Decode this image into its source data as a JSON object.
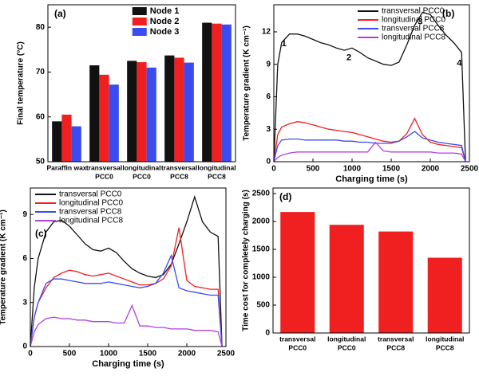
{
  "chart_data": [
    {
      "type": "bar",
      "label": "(a)",
      "y_label": "Final temperature (°C)",
      "categories": [
        [
          "Paraffin wax"
        ],
        [
          "transversal",
          "PCC0"
        ],
        [
          "longitudinal",
          "PCC0"
        ],
        [
          "transversal",
          "PCC8"
        ],
        [
          "longitudinal",
          "PCC8"
        ]
      ],
      "series": [
        {
          "name": "Node 1",
          "color": "#111111",
          "values": [
            59,
            71.5,
            72.5,
            73.7,
            81
          ]
        },
        {
          "name": "Node 2",
          "color": "#f02020",
          "values": [
            60.5,
            69.4,
            72.2,
            73.2,
            80.8
          ]
        },
        {
          "name": "Node 3",
          "color": "#3a4cf0",
          "values": [
            57.9,
            67.2,
            71,
            72.1,
            80.6
          ]
        }
      ],
      "ylim": [
        50,
        85
      ],
      "yticks": [
        50,
        60,
        70,
        80
      ],
      "legend": "upper center"
    },
    {
      "type": "line",
      "label": "(b)",
      "x_label": "Charging time (s)",
      "y_label": "Temperature gradient (K cm⁻¹)",
      "x": [
        0,
        50,
        100,
        200,
        300,
        400,
        500,
        600,
        700,
        800,
        900,
        1000,
        1100,
        1200,
        1300,
        1400,
        1500,
        1600,
        1700,
        1800,
        1900,
        2000,
        2100,
        2200,
        2300,
        2400,
        2450
      ],
      "series": [
        {
          "name": "transversal PCC0",
          "color": "#111111",
          "values": [
            0,
            9,
            11,
            11.8,
            11.8,
            11.6,
            11.3,
            11,
            10.8,
            10.5,
            10.3,
            10.5,
            10.1,
            9.6,
            9.3,
            9.0,
            8.9,
            9.2,
            10.8,
            12.6,
            13.8,
            13.6,
            12.6,
            11.7,
            11,
            10.1,
            0
          ]
        },
        {
          "name": "longitudinal PCC0",
          "color": "#f02020",
          "values": [
            0,
            2.5,
            3.2,
            3.5,
            3.7,
            3.6,
            3.4,
            3.2,
            3.0,
            2.9,
            2.8,
            2.7,
            2.5,
            2.3,
            2.1,
            1.9,
            1.8,
            1.9,
            2.6,
            4.0,
            2.5,
            1.8,
            1.6,
            1.5,
            1.4,
            1.3,
            0
          ]
        },
        {
          "name": "transversal PCC8",
          "color": "#3a4cf0",
          "values": [
            0,
            1.5,
            2.0,
            2.1,
            2.1,
            2.0,
            2.0,
            2.0,
            2.0,
            2.0,
            1.9,
            1.9,
            1.8,
            1.8,
            1.7,
            1.7,
            1.7,
            1.9,
            2.3,
            2.8,
            2.2,
            2.0,
            1.8,
            1.7,
            1.6,
            1.5,
            0
          ]
        },
        {
          "name": "longitudinal PCC8",
          "color": "#b040e0",
          "values": [
            0,
            0.4,
            0.6,
            0.8,
            0.9,
            0.9,
            0.9,
            0.9,
            0.9,
            0.9,
            0.9,
            0.9,
            0.9,
            0.9,
            1.8,
            1.0,
            0.9,
            0.9,
            0.9,
            0.9,
            0.9,
            0.9,
            0.8,
            0.8,
            0.8,
            0.7,
            0
          ]
        }
      ],
      "xlim": [
        0,
        2500
      ],
      "xticks": [
        0,
        500,
        1000,
        1500,
        2000,
        2500
      ],
      "ylim": [
        0,
        14.5
      ],
      "yticks": [
        0,
        3,
        6,
        9,
        12
      ],
      "legend": "upper right",
      "annotations": [
        {
          "text": "1",
          "x": 130,
          "y": 10.9
        },
        {
          "text": "2",
          "x": 960,
          "y": 9.6
        },
        {
          "text": "3",
          "x": 1870,
          "y": 12.9
        },
        {
          "text": "4",
          "x": 2370,
          "y": 9.1
        }
      ]
    },
    {
      "type": "line",
      "label": "(c)",
      "x_label": "Charging time (s)",
      "y_label": "Temperature gradient (K cm⁻¹)",
      "x": [
        0,
        50,
        100,
        200,
        300,
        400,
        500,
        600,
        700,
        800,
        900,
        1000,
        1100,
        1200,
        1300,
        1400,
        1500,
        1600,
        1700,
        1800,
        1900,
        2000,
        2100,
        2200,
        2300,
        2400,
        2450
      ],
      "series": [
        {
          "name": "transversal PCC0",
          "color": "#111111",
          "values": [
            0,
            4,
            6,
            7.8,
            8.5,
            8.6,
            8.2,
            7.6,
            7.0,
            6.6,
            6.5,
            6.7,
            6.4,
            5.8,
            5.3,
            5.0,
            4.8,
            4.7,
            4.9,
            5.6,
            7.0,
            8.5,
            10.2,
            8.5,
            7.8,
            7.5,
            0
          ]
        },
        {
          "name": "longitudinal PCC0",
          "color": "#f02020",
          "values": [
            0,
            2,
            3,
            4,
            4.7,
            5.0,
            5.2,
            5.1,
            4.9,
            4.8,
            4.9,
            5.0,
            4.8,
            4.6,
            4.4,
            4.2,
            4.2,
            4.3,
            4.6,
            5.5,
            8.1,
            4.5,
            4.1,
            4.0,
            3.9,
            3.9,
            0
          ]
        },
        {
          "name": "transversal PCC8",
          "color": "#3a4cf0",
          "values": [
            0,
            2,
            3,
            4.3,
            4.6,
            4.6,
            4.5,
            4.4,
            4.3,
            4.3,
            4.3,
            4.4,
            4.3,
            4.2,
            4.1,
            4.0,
            4.1,
            4.3,
            5.0,
            6.2,
            4.0,
            3.8,
            3.7,
            3.6,
            3.5,
            3.5,
            0
          ]
        },
        {
          "name": "longitudinal PCC8",
          "color": "#b040e0",
          "values": [
            0,
            1,
            1.5,
            1.9,
            2.0,
            1.9,
            1.9,
            1.8,
            1.8,
            1.7,
            1.7,
            1.7,
            1.6,
            1.6,
            2.8,
            1.4,
            1.4,
            1.3,
            1.3,
            1.2,
            1.2,
            1.2,
            1.1,
            1.1,
            1.1,
            1.0,
            0
          ]
        }
      ],
      "xlim": [
        0,
        2500
      ],
      "xticks": [
        0,
        500,
        1000,
        1500,
        2000,
        2500
      ],
      "ylim": [
        0,
        10.8
      ],
      "yticks": [
        0,
        3,
        6,
        9
      ],
      "legend": "upper left"
    },
    {
      "type": "bar",
      "label": "(d)",
      "y_label": "Time cost for completely charging (s)",
      "categories": [
        [
          "transversal",
          "PCC0"
        ],
        [
          "longitudinal",
          "PCC0"
        ],
        [
          "transversal",
          "PCC8"
        ],
        [
          "longitudinal",
          "PCC8"
        ]
      ],
      "series": [
        {
          "color": "#f02020",
          "values": [
            2170,
            1940,
            1820,
            1350
          ]
        }
      ],
      "ylim": [
        0,
        2600
      ],
      "yticks": [
        0,
        500,
        1000,
        1500,
        2000,
        2500
      ]
    }
  ]
}
